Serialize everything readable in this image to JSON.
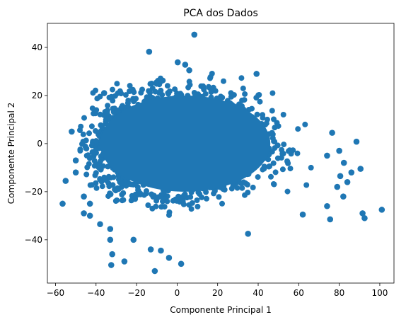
{
  "chart_data": {
    "type": "scatter",
    "title": "PCA dos Dados",
    "xlabel": "Componente Principal 1",
    "ylabel": "Componente Principal 2",
    "xlim": [
      -64,
      107
    ],
    "ylim": [
      -58,
      50
    ],
    "xticks": [
      -60,
      -40,
      -20,
      0,
      20,
      40,
      60,
      80,
      100
    ],
    "yticks": [
      -40,
      -20,
      0,
      20,
      40
    ],
    "grid": false,
    "legend": "none",
    "color": "#1f77b4",
    "cluster": {
      "description_center": [
        0,
        0
      ],
      "x_range": [
        -48,
        75
      ],
      "y_range": [
        -30,
        30
      ]
    },
    "points": [
      {
        "x": 8.5,
        "y": 45.3
      },
      {
        "x": -13.8,
        "y": 38.2
      },
      {
        "x": 0.3,
        "y": 33.8
      },
      {
        "x": 4,
        "y": 32.8
      },
      {
        "x": 6,
        "y": 30.5
      },
      {
        "x": 39.2,
        "y": 29
      },
      {
        "x": -36,
        "y": 21
      },
      {
        "x": -52,
        "y": 5
      },
      {
        "x": 76.5,
        "y": 4.5
      },
      {
        "x": 88.5,
        "y": 0.8
      },
      {
        "x": 80,
        "y": -3
      },
      {
        "x": 74,
        "y": -5
      },
      {
        "x": -50,
        "y": -7
      },
      {
        "x": 82.3,
        "y": -8
      },
      {
        "x": 90.5,
        "y": -10.5
      },
      {
        "x": 86,
        "y": -12
      },
      {
        "x": 80.5,
        "y": -13.5
      },
      {
        "x": -50,
        "y": -12
      },
      {
        "x": -55,
        "y": -15.5
      },
      {
        "x": 84,
        "y": -16
      },
      {
        "x": 79,
        "y": -18
      },
      {
        "x": 82,
        "y": -22
      },
      {
        "x": -46,
        "y": -22
      },
      {
        "x": -43,
        "y": -25
      },
      {
        "x": -56.5,
        "y": -25
      },
      {
        "x": 74,
        "y": -26
      },
      {
        "x": 101,
        "y": -27.5
      },
      {
        "x": -46,
        "y": -29
      },
      {
        "x": 91.5,
        "y": -29
      },
      {
        "x": 62,
        "y": -29.5
      },
      {
        "x": -43,
        "y": -30
      },
      {
        "x": 92.5,
        "y": -31
      },
      {
        "x": 75.5,
        "y": -31.5
      },
      {
        "x": -38,
        "y": -33.5
      },
      {
        "x": -33,
        "y": -35.5
      },
      {
        "x": 35,
        "y": -37.5
      },
      {
        "x": -33,
        "y": -40
      },
      {
        "x": -21.5,
        "y": -40
      },
      {
        "x": -13,
        "y": -44
      },
      {
        "x": -8,
        "y": -44.5
      },
      {
        "x": -32,
        "y": -46
      },
      {
        "x": -4,
        "y": -47.5
      },
      {
        "x": -26,
        "y": -49
      },
      {
        "x": -32.5,
        "y": -50.5
      },
      {
        "x": 2,
        "y": -50
      },
      {
        "x": -11,
        "y": -53
      }
    ]
  }
}
